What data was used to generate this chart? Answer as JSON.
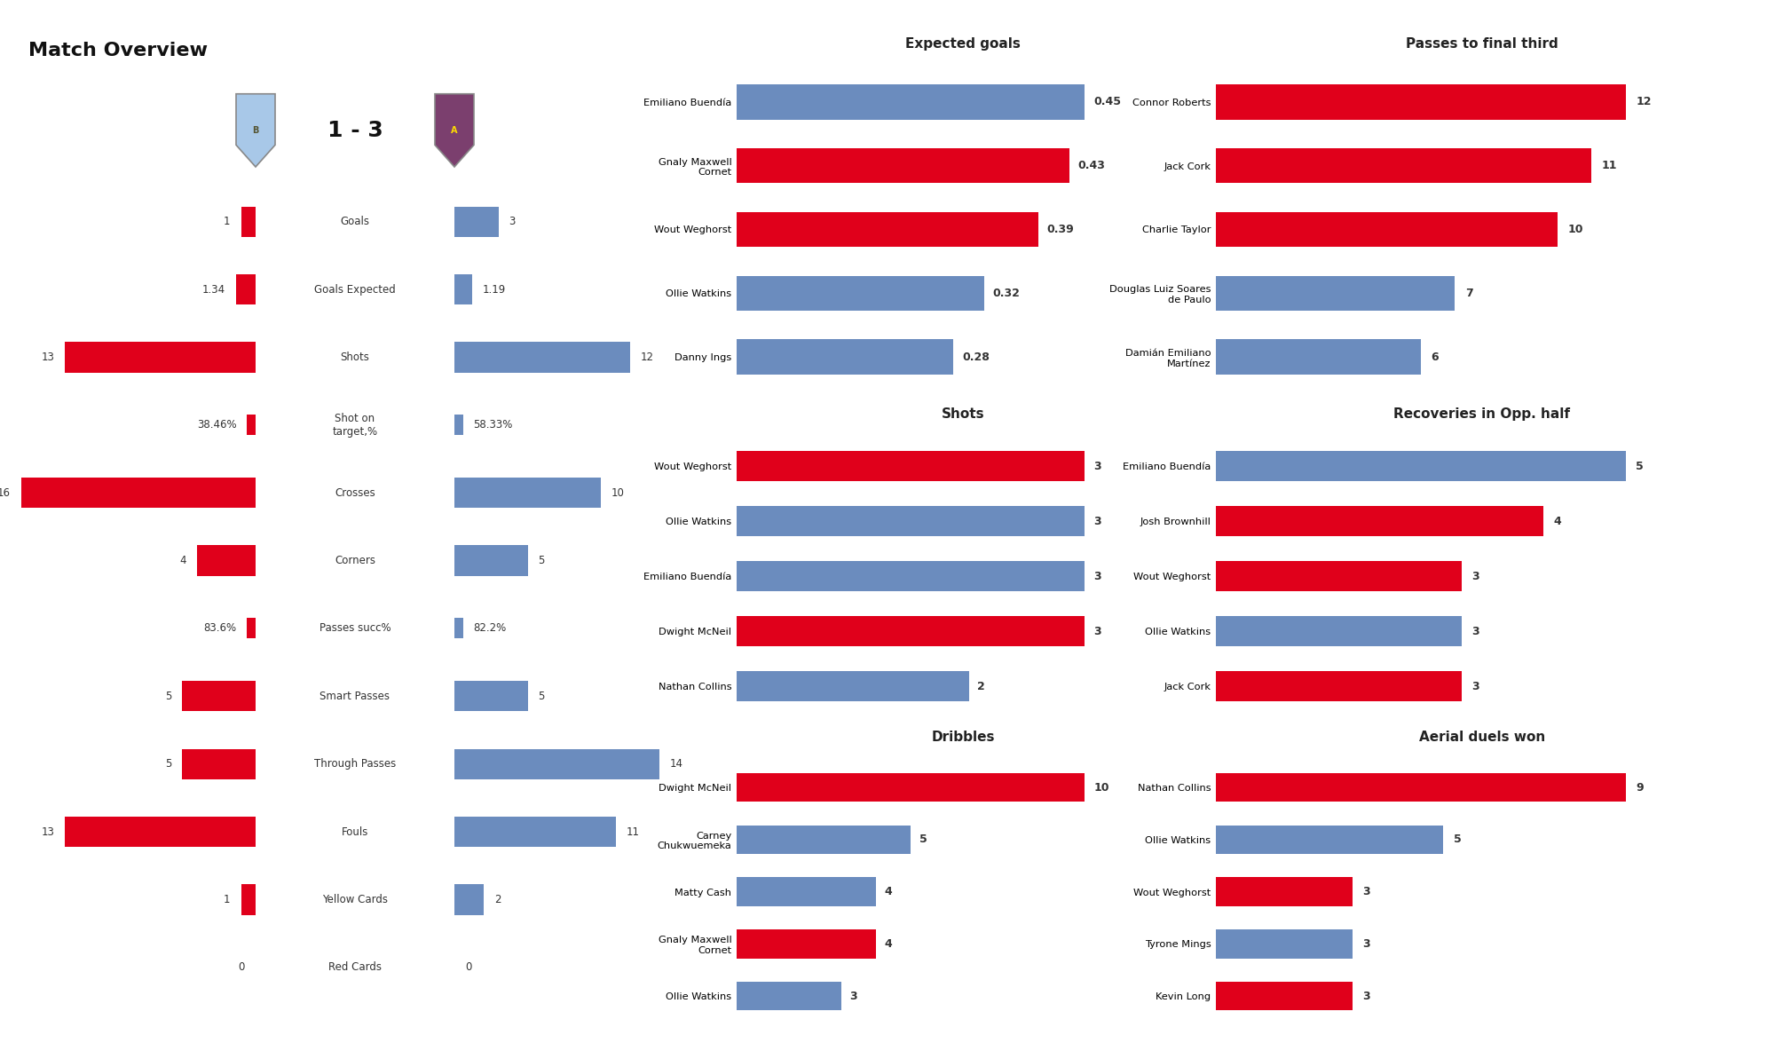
{
  "title": "Match Overview",
  "score": "1 - 3",
  "team1_color": "#E0001B",
  "team2_color": "#6B8CBE",
  "overview_stats": [
    {
      "label": "Goals",
      "val1": "1",
      "val2": "3",
      "num1": 1,
      "num2": 3,
      "is_pct": false
    },
    {
      "label": "Goals Expected",
      "val1": "1.34",
      "val2": "1.19",
      "num1": 1.34,
      "num2": 1.19,
      "is_pct": false
    },
    {
      "label": "Shots",
      "val1": "13",
      "val2": "12",
      "num1": 13,
      "num2": 12,
      "is_pct": false
    },
    {
      "label": "Shot on\ntarget,%",
      "val1": "38.46%",
      "val2": "58.33%",
      "num1": 0,
      "num2": 0,
      "is_pct": true
    },
    {
      "label": "Crosses",
      "val1": "16",
      "val2": "10",
      "num1": 16,
      "num2": 10,
      "is_pct": false
    },
    {
      "label": "Corners",
      "val1": "4",
      "val2": "5",
      "num1": 4,
      "num2": 5,
      "is_pct": false
    },
    {
      "label": "Passes succ%",
      "val1": "83.6%",
      "val2": "82.2%",
      "num1": 0,
      "num2": 0,
      "is_pct": true
    },
    {
      "label": "Smart Passes",
      "val1": "5",
      "val2": "5",
      "num1": 5,
      "num2": 5,
      "is_pct": false
    },
    {
      "label": "Through Passes",
      "val1": "5",
      "val2": "14",
      "num1": 5,
      "num2": 14,
      "is_pct": false
    },
    {
      "label": "Fouls",
      "val1": "13",
      "val2": "11",
      "num1": 13,
      "num2": 11,
      "is_pct": false
    },
    {
      "label": "Yellow Cards",
      "val1": "1",
      "val2": "2",
      "num1": 1,
      "num2": 2,
      "is_pct": false
    },
    {
      "label": "Red Cards",
      "val1": "0",
      "val2": "0",
      "num1": 0,
      "num2": 0,
      "is_pct": false
    }
  ],
  "expected_goals": {
    "title": "Expected goals",
    "players": [
      "Emiliano Buendía",
      "Gnaly Maxwell\nCornet",
      "Wout Weghorst",
      "Ollie Watkins",
      "Danny Ings"
    ],
    "values": [
      0.45,
      0.43,
      0.39,
      0.32,
      0.28
    ],
    "colors": [
      "#6B8CBE",
      "#E0001B",
      "#E0001B",
      "#6B8CBE",
      "#6B8CBE"
    ]
  },
  "shots": {
    "title": "Shots",
    "players": [
      "Wout Weghorst",
      "Ollie Watkins",
      "Emiliano Buendía",
      "Dwight McNeil",
      "Nathan Collins"
    ],
    "values": [
      3,
      3,
      3,
      3,
      2
    ],
    "colors": [
      "#E0001B",
      "#6B8CBE",
      "#6B8CBE",
      "#E0001B",
      "#6B8CBE"
    ]
  },
  "dribbles": {
    "title": "Dribbles",
    "players": [
      "Dwight McNeil",
      "Carney\nChukwuemeka",
      "Matty Cash",
      "Gnaly Maxwell\nCornet",
      "Ollie Watkins"
    ],
    "values": [
      10,
      5,
      4,
      4,
      3
    ],
    "colors": [
      "#E0001B",
      "#6B8CBE",
      "#6B8CBE",
      "#E0001B",
      "#6B8CBE"
    ]
  },
  "passes_final_third": {
    "title": "Passes to final third",
    "players": [
      "Connor Roberts",
      "Jack Cork",
      "Charlie Taylor",
      "Douglas Luiz Soares\nde Paulo",
      "Damián Emiliano\nMartínez"
    ],
    "values": [
      12,
      11,
      10,
      7,
      6
    ],
    "colors": [
      "#E0001B",
      "#E0001B",
      "#E0001B",
      "#6B8CBE",
      "#6B8CBE"
    ]
  },
  "recoveries_opp_half": {
    "title": "Recoveries in Opp. half",
    "players": [
      "Emiliano Buendía",
      "Josh Brownhill",
      "Wout Weghorst",
      "Ollie Watkins",
      "Jack Cork"
    ],
    "values": [
      5,
      4,
      3,
      3,
      3
    ],
    "colors": [
      "#6B8CBE",
      "#E0001B",
      "#E0001B",
      "#6B8CBE",
      "#E0001B"
    ]
  },
  "aerial_duels": {
    "title": "Aerial duels won",
    "players": [
      "Nathan Collins",
      "Ollie Watkins",
      "Wout Weghorst",
      "Tyrone Mings",
      "Kevin Long"
    ],
    "values": [
      9,
      5,
      3,
      3,
      3
    ],
    "colors": [
      "#E0001B",
      "#6B8CBE",
      "#E0001B",
      "#6B8CBE",
      "#E0001B"
    ]
  },
  "bar_max_ref": 16,
  "badge_burnley_colors": [
    "#6DAEDB",
    "#8B7536",
    "#FFFFFF"
  ],
  "badge_villa_colors": [
    "#95BFE5",
    "#670E36",
    "#FFFFFF"
  ]
}
